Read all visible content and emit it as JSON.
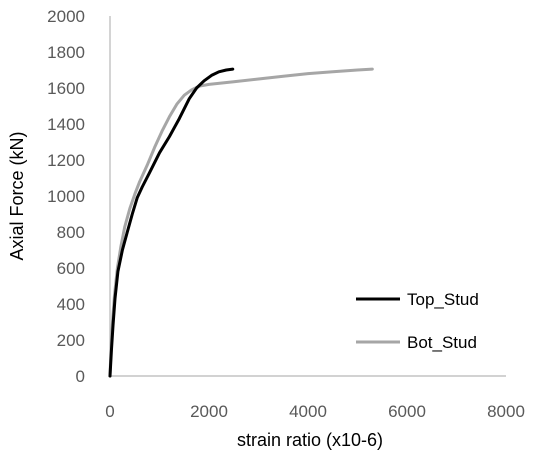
{
  "chart_data": {
    "type": "line",
    "xlabel": "strain ratio (x10-6)",
    "ylabel": "Axial Force (kN)",
    "xlim": [
      0,
      8000
    ],
    "ylim": [
      0,
      2000
    ],
    "x_ticks": [
      "0",
      "2000",
      "4000",
      "6000",
      "8000"
    ],
    "y_ticks": [
      "0",
      "200",
      "400",
      "600",
      "800",
      "1000",
      "1200",
      "1400",
      "1600",
      "1800",
      "2000"
    ],
    "x_tick_values": [
      0,
      2000,
      4000,
      6000,
      8000
    ],
    "y_tick_values": [
      0,
      200,
      400,
      600,
      800,
      1000,
      1200,
      1400,
      1600,
      1800,
      2000
    ],
    "grid": false,
    "legend_position": "right",
    "series": [
      {
        "name": "Top_Stud",
        "color": "#000000",
        "x": [
          0,
          30,
          60,
          100,
          160,
          250,
          350,
          450,
          550,
          650,
          800,
          1000,
          1200,
          1400,
          1600,
          1750,
          1900,
          2050,
          2200,
          2350,
          2480
        ],
        "y": [
          0,
          150,
          280,
          430,
          580,
          700,
          800,
          900,
          990,
          1050,
          1130,
          1240,
          1330,
          1430,
          1540,
          1600,
          1640,
          1670,
          1690,
          1700,
          1705
        ]
      },
      {
        "name": "Bot_Stud",
        "color": "#a6a6a6",
        "x": [
          0,
          20,
          50,
          90,
          150,
          220,
          300,
          400,
          500,
          600,
          750,
          900,
          1050,
          1200,
          1350,
          1500,
          1650,
          1800,
          2000,
          2500,
          3000,
          3500,
          4000,
          4500,
          5000,
          5300
        ],
        "y": [
          0,
          150,
          300,
          450,
          600,
          720,
          830,
          930,
          1010,
          1080,
          1170,
          1270,
          1360,
          1440,
          1510,
          1560,
          1590,
          1610,
          1620,
          1635,
          1650,
          1665,
          1680,
          1690,
          1700,
          1705
        ]
      }
    ]
  }
}
